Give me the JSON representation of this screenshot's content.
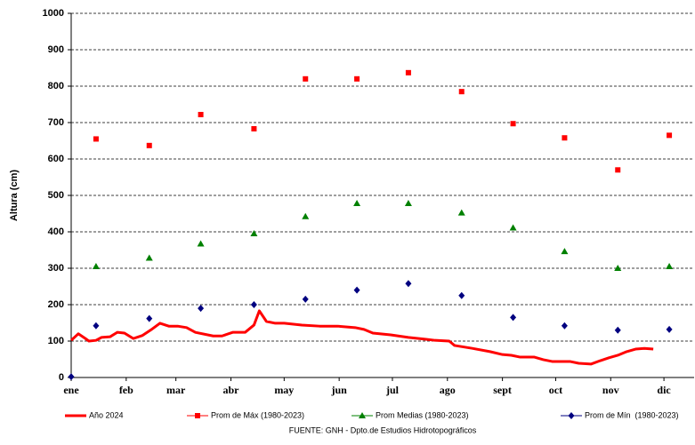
{
  "chart_data": {
    "type": "line",
    "y_label": "Altura (cm)",
    "source": "FUENTE: GNH - Dpto.de Estudios Hidrotopográficos",
    "xlim": [
      0,
      351
    ],
    "ylim": [
      0,
      1000
    ],
    "yticks": [
      0,
      100,
      200,
      300,
      400,
      500,
      600,
      700,
      800,
      900,
      1000
    ],
    "xticks": [
      {
        "value": 0,
        "label": "ene"
      },
      {
        "value": 31,
        "label": "feb"
      },
      {
        "value": 59,
        "label": "mar"
      },
      {
        "value": 90,
        "label": "abr"
      },
      {
        "value": 120,
        "label": "may"
      },
      {
        "value": 151,
        "label": "jun"
      },
      {
        "value": 181,
        "label": "jul"
      },
      {
        "value": 212,
        "label": "ago"
      },
      {
        "value": 243,
        "label": "sept"
      },
      {
        "value": 273,
        "label": "oct"
      },
      {
        "value": 304,
        "label": "nov"
      },
      {
        "value": 334,
        "label": "dic"
      }
    ],
    "grid": true,
    "series": [
      {
        "name": "Año 2024",
        "color": "#ff0000",
        "marker": "line",
        "x": [
          0,
          4,
          8,
          10,
          14,
          17,
          22,
          26,
          30,
          35,
          40,
          45,
          50,
          55,
          60,
          65,
          70,
          80,
          85,
          91,
          98,
          103,
          106,
          110,
          115,
          120,
          130,
          140,
          150,
          160,
          165,
          170,
          180,
          190,
          200,
          205,
          213,
          216,
          226,
          236,
          243,
          248,
          253,
          261,
          266,
          271,
          281,
          286,
          293,
          298,
          303,
          308,
          313,
          318,
          323,
          328
        ],
        "values": [
          102,
          120,
          107,
          100,
          102,
          110,
          112,
          124,
          122,
          107,
          115,
          131,
          149,
          141,
          141,
          137,
          124,
          114,
          114,
          124,
          124,
          144,
          183,
          154,
          149,
          149,
          144,
          141,
          141,
          137,
          132,
          122,
          117,
          110,
          105,
          102,
          100,
          88,
          80,
          71,
          63,
          61,
          56,
          56,
          49,
          44,
          44,
          39,
          37,
          46,
          54,
          61,
          71,
          78,
          80,
          78
        ]
      },
      {
        "name": "Prom de Máx (1980-2023)",
        "color": "#ff0000",
        "marker": "square",
        "x": [
          14,
          44,
          73,
          103,
          132,
          161,
          190,
          220,
          249,
          278,
          308,
          337
        ],
        "values": [
          655,
          637,
          722,
          683,
          820,
          820,
          837,
          785,
          697,
          658,
          570,
          665
        ]
      },
      {
        "name": "Prom Medias (1980-2023)",
        "color": "#008000",
        "marker": "triangle",
        "x": [
          14,
          44,
          73,
          103,
          132,
          161,
          190,
          220,
          249,
          278,
          308,
          337
        ],
        "values": [
          305,
          328,
          367,
          395,
          442,
          478,
          478,
          452,
          411,
          346,
          300,
          305
        ]
      },
      {
        "name": "Prom de Mín  (1980-2023)",
        "color": "#000080",
        "marker": "diamond",
        "x": [
          0,
          14,
          44,
          73,
          103,
          132,
          161,
          190,
          220,
          249,
          278,
          308,
          337
        ],
        "values": [
          2,
          142,
          162,
          190,
          200,
          215,
          240,
          258,
          225,
          165,
          142,
          130,
          132
        ]
      }
    ]
  }
}
